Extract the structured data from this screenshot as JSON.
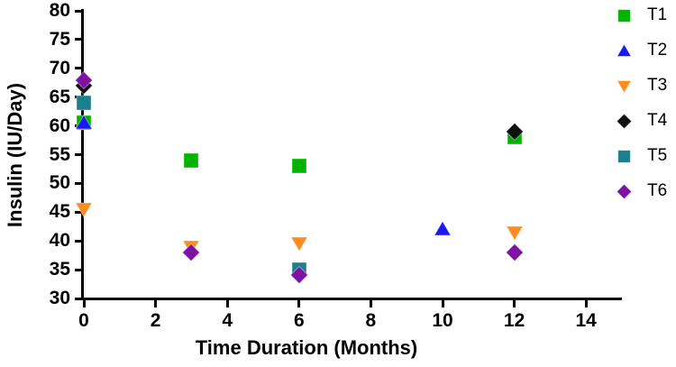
{
  "chart_data": {
    "type": "scatter",
    "title": "",
    "xlabel": "Time Duration (Months)",
    "ylabel": "Insulin (IU/Day)",
    "xlim": [
      0,
      15
    ],
    "ylim": [
      30,
      80
    ],
    "xticks": [
      0,
      2,
      4,
      6,
      8,
      10,
      12,
      14
    ],
    "yticks": [
      30,
      35,
      40,
      45,
      50,
      55,
      60,
      65,
      70,
      75,
      80
    ],
    "grid": false,
    "legend_position": "right",
    "axis_color": "#000000",
    "series": [
      {
        "name": "T1",
        "marker": "square",
        "color": "#00B400",
        "points": [
          [
            0,
            60.5
          ],
          [
            3,
            54
          ],
          [
            6,
            53
          ],
          [
            12,
            58
          ]
        ]
      },
      {
        "name": "T2",
        "marker": "triangle-up",
        "color": "#1A1AF0",
        "points": [
          [
            0,
            60.5
          ],
          [
            10,
            42
          ]
        ]
      },
      {
        "name": "T3",
        "marker": "triangle-down",
        "color": "#FF8C1E",
        "points": [
          [
            0,
            45.5
          ],
          [
            3,
            39
          ],
          [
            6,
            39.5
          ],
          [
            12,
            41.5
          ]
        ]
      },
      {
        "name": "T4",
        "marker": "diamond",
        "color": "#101010",
        "points": [
          [
            0,
            67
          ],
          [
            12,
            59
          ]
        ]
      },
      {
        "name": "T5",
        "marker": "square",
        "color": "#1B7F8E",
        "points": [
          [
            0,
            64
          ],
          [
            6,
            35
          ]
        ]
      },
      {
        "name": "T6",
        "marker": "diamond",
        "color": "#7D13A2",
        "points": [
          [
            0,
            68
          ],
          [
            3,
            38
          ],
          [
            6,
            34
          ],
          [
            12,
            38
          ]
        ]
      }
    ]
  }
}
